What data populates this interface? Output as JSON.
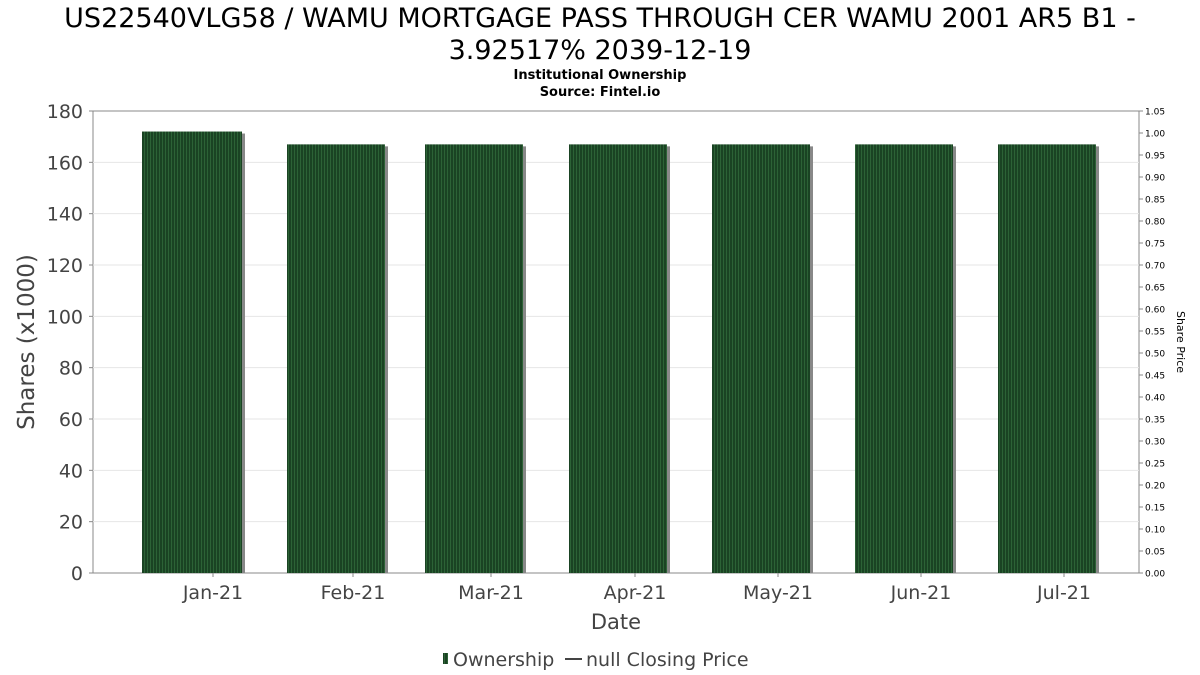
{
  "chart_data": {
    "type": "bar",
    "title_line1": "US22540VLG58 / WAMU MORTGAGE PASS THROUGH CER WAMU 2001 AR5 B1 -",
    "title_line2": "3.92517% 2039-12-19",
    "subtitle_line1": "Institutional Ownership",
    "subtitle_line2": "Source: Fintel.io",
    "xlabel": "Date",
    "ylabel": "Shares (x1000)",
    "y2label": "Share Price",
    "categories": [
      "Jan-21",
      "Feb-21",
      "Mar-21",
      "Apr-21",
      "May-21",
      "Jun-21",
      "Jul-21"
    ],
    "series": [
      {
        "name": "Ownership",
        "values": [
          172,
          167,
          167,
          167,
          167,
          167,
          167
        ]
      }
    ],
    "ylim": [
      0,
      180
    ],
    "yticks": [
      "0",
      "20",
      "40",
      "60",
      "80",
      "100",
      "120",
      "140",
      "160",
      "180"
    ],
    "y2lim": [
      0,
      1.05
    ],
    "y2ticks": [
      "0.00",
      "0.05",
      "0.10",
      "0.15",
      "0.20",
      "0.25",
      "0.30",
      "0.35",
      "0.40",
      "0.45",
      "0.50",
      "0.55",
      "0.60",
      "0.65",
      "0.70",
      "0.75",
      "0.80",
      "0.85",
      "0.90",
      "0.95",
      "1.00",
      "1.05"
    ],
    "legend": {
      "position": "bottom",
      "items": [
        {
          "label": "Ownership",
          "swatch": "bar"
        },
        {
          "label": "null Closing Price",
          "swatch": "line"
        }
      ]
    },
    "grid": true,
    "colors": {
      "bar": "#1a4323",
      "bar_stripe": "#2c6236",
      "bar_shadow": "#888888",
      "grid": "#e6e6e6",
      "axis": "#888888"
    }
  }
}
